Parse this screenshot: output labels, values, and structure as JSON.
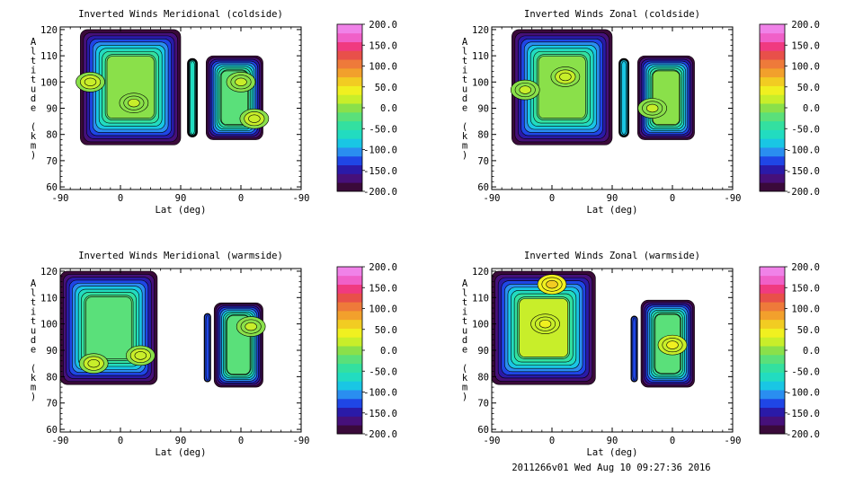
{
  "footer": "2011266v01 Wed Aug 10 09:27:36 2016",
  "colorbar": {
    "ticks": [
      "200.0",
      "150.0",
      "100.0",
      "50.0",
      "0.0",
      "-50.0",
      "-100.0",
      "-150.0",
      "-200.0"
    ],
    "range": [
      -200,
      200
    ],
    "colors": [
      "#3a0a3a",
      "#46107a",
      "#2a1aa8",
      "#1f46e6",
      "#2a8ef0",
      "#19c6e4",
      "#22dcc0",
      "#33e0a0",
      "#5ae07a",
      "#8ae04a",
      "#c8ee2a",
      "#f0f020",
      "#f2cc22",
      "#f2a02c",
      "#ee7a3a",
      "#e8504a",
      "#f03a80",
      "#f060c8",
      "#f082e8"
    ]
  },
  "chart_data": [
    {
      "type": "contour",
      "title": "Inverted Winds Meridional (coldside)",
      "xlabel": "Lat (deg)",
      "ylabel": "Altitude (km)",
      "xticks": [
        "-90",
        "0",
        "90",
        "0",
        "-90"
      ],
      "yticks": [
        60,
        70,
        80,
        90,
        100,
        110,
        120
      ],
      "ylim": [
        59,
        121
      ],
      "regions": [
        {
          "lat": [
            -60,
            90
          ],
          "alt": [
            76,
            120
          ],
          "level": -10
        },
        {
          "lat": [
            100,
            115
          ],
          "alt": [
            79,
            109
          ],
          "level": -60
        },
        {
          "lat": [
            128,
            213
          ],
          "alt": [
            78,
            110
          ],
          "level": -20
        }
      ],
      "warm_spots": [
        [
          -45,
          100,
          30
        ],
        [
          20,
          92,
          15
        ],
        [
          180,
          100,
          20
        ],
        [
          200,
          86,
          30
        ]
      ]
    },
    {
      "type": "contour",
      "title": "Inverted Winds Zonal (coldside)",
      "xlabel": "Lat (deg)",
      "ylabel": "Altitude (km)",
      "xticks": [
        "-90",
        "0",
        "90",
        "0",
        "-90"
      ],
      "yticks": [
        60,
        70,
        80,
        90,
        100,
        110,
        120
      ],
      "ylim": [
        59,
        121
      ],
      "regions": [
        {
          "lat": [
            -60,
            90
          ],
          "alt": [
            76,
            120
          ],
          "level": 5
        },
        {
          "lat": [
            100,
            115
          ],
          "alt": [
            79,
            109
          ],
          "level": -80
        },
        {
          "lat": [
            128,
            213
          ],
          "alt": [
            78,
            110
          ],
          "level": -10
        }
      ],
      "warm_spots": [
        [
          20,
          102,
          25
        ],
        [
          -40,
          97,
          20
        ],
        [
          150,
          90,
          20
        ]
      ]
    },
    {
      "type": "contour",
      "title": "Inverted Winds Meridional (warmside)",
      "xlabel": "Lat (deg)",
      "ylabel": "Altitude (km)",
      "xticks": [
        "-90",
        "0",
        "90",
        "0",
        "-90"
      ],
      "yticks": [
        60,
        70,
        80,
        90,
        100,
        110,
        120
      ],
      "ylim": [
        59,
        121
      ],
      "regions": [
        {
          "lat": [
            -90,
            55
          ],
          "alt": [
            77,
            120
          ],
          "level": -20
        },
        {
          "lat": [
            125,
            135
          ],
          "alt": [
            78,
            104
          ],
          "level": -120
        },
        {
          "lat": [
            140,
            213
          ],
          "alt": [
            76,
            108
          ],
          "level": -30
        }
      ],
      "warm_spots": [
        [
          -40,
          85,
          30
        ],
        [
          30,
          88,
          25
        ],
        [
          195,
          99,
          20
        ]
      ]
    },
    {
      "type": "contour",
      "title": "Inverted Winds Zonal (warmside)",
      "xlabel": "Lat (deg)",
      "ylabel": "Altitude (km)",
      "xticks": [
        "-90",
        "0",
        "90",
        "0",
        "-90"
      ],
      "yticks": [
        60,
        70,
        80,
        90,
        100,
        110,
        120
      ],
      "ylim": [
        59,
        121
      ],
      "regions": [
        {
          "lat": [
            -90,
            65
          ],
          "alt": [
            77,
            120
          ],
          "level": 20
        },
        {
          "lat": [
            118,
            128
          ],
          "alt": [
            78,
            103
          ],
          "level": -120
        },
        {
          "lat": [
            133,
            213
          ],
          "alt": [
            76,
            109
          ],
          "level": -20
        }
      ],
      "warm_spots": [
        [
          0,
          115,
          60
        ],
        [
          -10,
          100,
          35
        ],
        [
          180,
          92,
          40
        ]
      ]
    }
  ]
}
